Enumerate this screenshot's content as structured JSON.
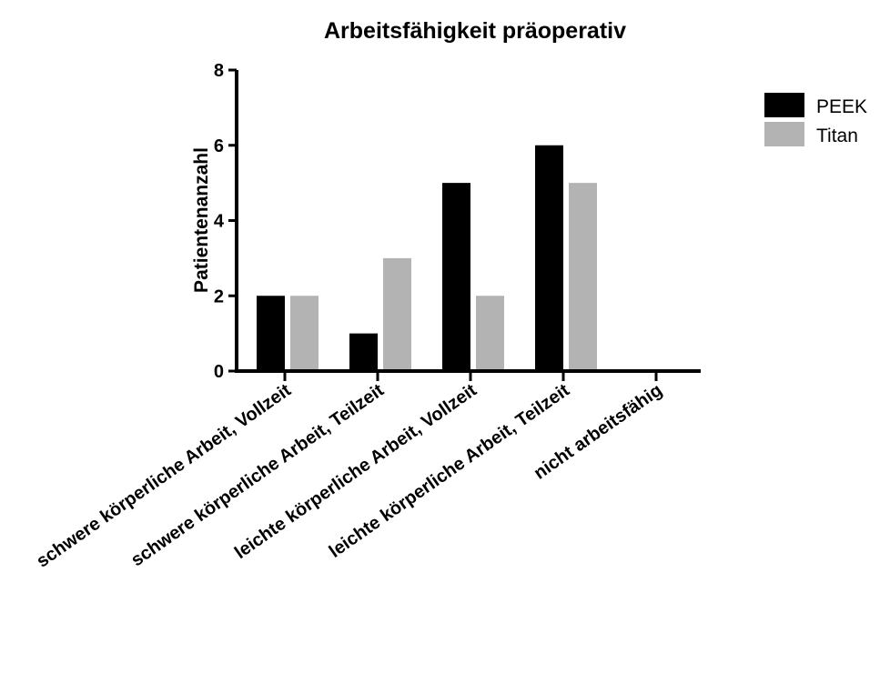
{
  "chart_data": {
    "type": "bar",
    "title": "Arbeitsfähigkeit präoperativ",
    "xlabel": "",
    "ylabel": "Patientenanzahl",
    "ylim": [
      0,
      8
    ],
    "yticks": [
      "0",
      "2",
      "4",
      "6",
      "8"
    ],
    "categories": [
      "schwere körperliche Arbeit, Vollzeit",
      "schwere körperliche Arbeit, Teilzeit",
      "leichte körperliche Arbeit, Vollzeit",
      "leichte körperliche Arbeit, Teilzeit",
      "nicht arbeitsfähig"
    ],
    "series": [
      {
        "name": "PEEK",
        "color": "#000000",
        "values": [
          2,
          1,
          5,
          6,
          0
        ]
      },
      {
        "name": "Titan",
        "color": "#b3b3b3",
        "values": [
          2,
          3,
          2,
          5,
          0
        ]
      }
    ],
    "grid": false,
    "legend": "top-right"
  }
}
